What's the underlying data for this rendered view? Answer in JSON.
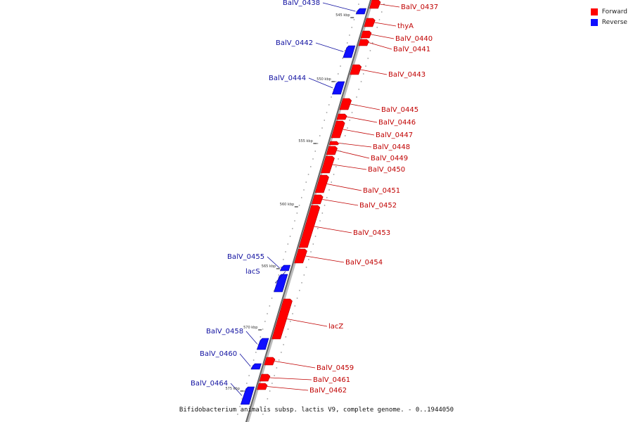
{
  "caption": "Bifidobacterium animalis subsp. lactis V9, complete genome. - 0..1944050",
  "legend": [
    {
      "label": "Forward",
      "color": "#ff0000"
    },
    {
      "label": "Reverse",
      "color": "#1010ff"
    }
  ],
  "kbp_labels": [
    "545 kbp",
    "550 kbp",
    "555 kbp",
    "560 kbp",
    "565 kbp",
    "570 kbp",
    "575 kbp"
  ],
  "genes": [
    {
      "name": "BalV_0437",
      "strand": "forward"
    },
    {
      "name": "BalV_0438",
      "strand": "reverse"
    },
    {
      "name": "thyA",
      "strand": "forward"
    },
    {
      "name": "BalV_0440",
      "strand": "forward"
    },
    {
      "name": "BalV_0441",
      "strand": "forward"
    },
    {
      "name": "BalV_0442",
      "strand": "reverse"
    },
    {
      "name": "BalV_0443",
      "strand": "forward"
    },
    {
      "name": "BalV_0444",
      "strand": "reverse"
    },
    {
      "name": "BalV_0445",
      "strand": "forward"
    },
    {
      "name": "BalV_0446",
      "strand": "forward"
    },
    {
      "name": "BalV_0447",
      "strand": "forward"
    },
    {
      "name": "BalV_0448",
      "strand": "forward"
    },
    {
      "name": "BalV_0449",
      "strand": "forward"
    },
    {
      "name": "BalV_0450",
      "strand": "forward"
    },
    {
      "name": "BalV_0451",
      "strand": "forward"
    },
    {
      "name": "BalV_0452",
      "strand": "forward"
    },
    {
      "name": "BalV_0453",
      "strand": "forward"
    },
    {
      "name": "BalV_0454",
      "strand": "forward"
    },
    {
      "name": "BalV_0455",
      "strand": "reverse"
    },
    {
      "name": "lacS",
      "strand": "reverse"
    },
    {
      "name": "lacZ",
      "strand": "forward"
    },
    {
      "name": "BalV_0458",
      "strand": "reverse"
    },
    {
      "name": "BalV_0459",
      "strand": "forward"
    },
    {
      "name": "BalV_0460",
      "strand": "reverse"
    },
    {
      "name": "BalV_0461",
      "strand": "forward"
    },
    {
      "name": "BalV_0462",
      "strand": "forward"
    },
    {
      "name": "BalV_0464",
      "strand": "reverse"
    }
  ]
}
